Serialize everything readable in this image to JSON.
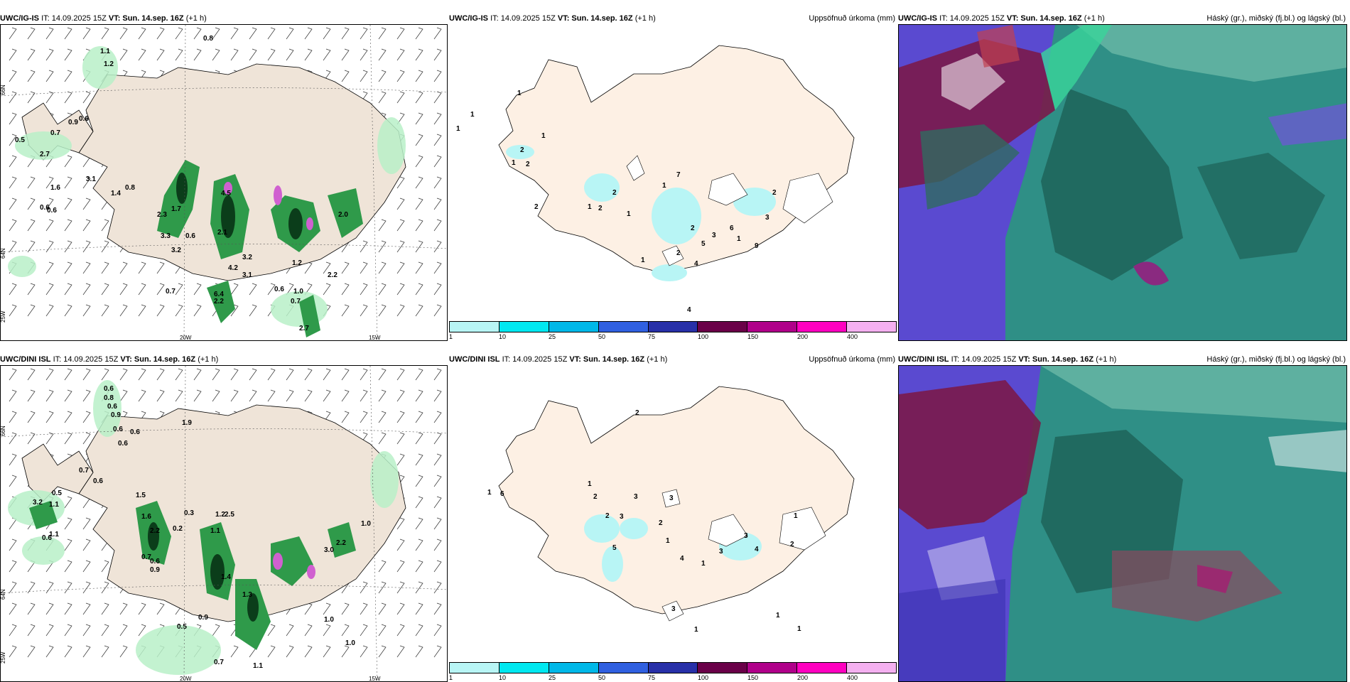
{
  "rows": [
    {
      "model": "UWC/IG-IS",
      "it": "IT: 14.09.2025 15Z",
      "vt": "VT: Sun. 14.sep. 16Z",
      "lead": "(+1 h)",
      "panel2_title": "Uppsöfnuð úrkoma (mm)",
      "panel3_title": "Háský (gr.), miðský (fj.bl.) og lágský (bl.)",
      "panel1_labels": [
        "0.8",
        "1.1",
        "1.2",
        "0.7",
        "0.9",
        "0.6",
        "0.5",
        "2.7",
        "3.1",
        "1.6",
        "1.4",
        "0.8",
        "0.6",
        "0.6",
        "4.5",
        "2.3",
        "1.7",
        "3.3",
        "3.2",
        "0.6",
        "2.1",
        "3.2",
        "4.2",
        "3.1",
        "0.7",
        "6.4",
        "2.2",
        "0.6",
        "0.7",
        "1.2",
        "1.0",
        "2.2",
        "2.0",
        "2.7"
      ],
      "panel2_labels": [
        "1",
        "1",
        "1",
        "2",
        "1",
        "2",
        "1",
        "7",
        "1",
        "2",
        "2",
        "1",
        "1",
        "2",
        "2",
        "5",
        "3",
        "4",
        "2",
        "6",
        "1",
        "9",
        "3",
        "2",
        "1",
        "4"
      ],
      "axes": {
        "lat_66": "66N",
        "lat_64": "64N",
        "lon_20": "20W",
        "lon_15": "15W",
        "lon_25": "25W"
      }
    },
    {
      "model": "UWC/DINI ISL",
      "it": "IT: 14.09.2025 15Z",
      "vt": "VT: Sun. 14.sep. 16Z",
      "lead": "(+1 h)",
      "panel2_title": "Uppsöfnuð úrkoma (mm)",
      "panel3_title": "Háský (gr.), miðský (fj.bl.) og lágský (bl.)",
      "panel1_labels": [
        "0.6",
        "0.8",
        "0.6",
        "0.9",
        "0.6",
        "0.6",
        "0.6",
        "1.9",
        "0.7",
        "0.6",
        "0.5",
        "3.2",
        "1.1",
        "1.1",
        "0.6",
        "1.5",
        "1.6",
        "2.2",
        "0.2",
        "0.3",
        "0.7",
        "0.6",
        "0.9",
        "1.1",
        "1.2",
        "2.5",
        "3.0",
        "2.2",
        "1.0",
        "0.5",
        "0.9",
        "1.4",
        "1.3",
        "0.7",
        "1.1",
        "1.0",
        "1.0"
      ],
      "panel2_labels": [
        "2",
        "1",
        "6",
        "1",
        "2",
        "3",
        "3",
        "2",
        "3",
        "5",
        "2",
        "1",
        "4",
        "1",
        "3",
        "4",
        "3",
        "2",
        "1",
        "3",
        "1",
        "1",
        "1"
      ],
      "axes": {
        "lat_66": "66N",
        "lat_64": "64N",
        "lon_20": "20W",
        "lon_15": "15W",
        "lon_25": "25W"
      }
    }
  ],
  "colorbar": {
    "ticks": [
      "1",
      "10",
      "25",
      "50",
      "75",
      "100",
      "150",
      "200",
      "400"
    ],
    "colors": [
      "#b8f5f5",
      "#00e8f0",
      "#00b8e8",
      "#3060e0",
      "#2830a8",
      "#6a0048",
      "#b0008a",
      "#ff00c0",
      "#f4b0f0"
    ]
  },
  "colors": {
    "land": "#efe4d8",
    "land_precip": "#fdf0e4",
    "precip_light": "#b8f0c8",
    "precip_mid": "#2f9a4a",
    "precip_dark": "#0b3d1a",
    "cloud_high": "#2f8f86",
    "cloud_mid": "#6a2a8a",
    "cloud_low": "#5a4ad0"
  }
}
